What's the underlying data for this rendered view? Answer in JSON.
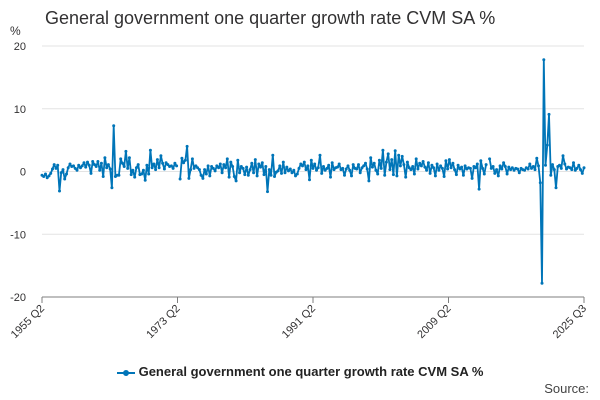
{
  "title": "General government one quarter growth rate CVM SA %",
  "ylabel": "%",
  "source": "Source:",
  "legend": "General government one quarter growth rate CVM SA %",
  "colors": {
    "series": "#0075b8",
    "grid": "#e3e3e3",
    "axis": "#7f7f7f",
    "text": "#323132"
  },
  "chart_data": {
    "type": "line",
    "title": "General government one quarter growth rate CVM SA %",
    "ylabel": "%",
    "xlabel": "",
    "ylim": [
      -20,
      20
    ],
    "yticks": [
      20,
      10,
      0,
      -10,
      -20
    ],
    "x_start": "1955 Q2",
    "x_end": "2025 Q3",
    "xtick_labels": [
      "1955 Q2",
      "1973 Q2",
      "1991 Q2",
      "2009 Q2",
      "2025 Q3"
    ],
    "legend_position": "bottom",
    "grid": true,
    "series": [
      {
        "name": "General government one quarter growth rate CVM SA %",
        "values": [
          -0.6,
          -0.8,
          -0.4,
          -1.0,
          -0.7,
          -0.3,
          0.4,
          1.1,
          0.5,
          1.0,
          -3.1,
          -0.2,
          0.3,
          -1.2,
          -0.4,
          0.6,
          1.2,
          0.8,
          0.9,
          0.5,
          0.2,
          1.0,
          0.6,
          0.9,
          1.4,
          0.7,
          1.5,
          1.0,
          -0.3,
          1.6,
          1.1,
          0.8,
          1.6,
          0.2,
          1.3,
          -0.8,
          2.2,
          0.6,
          1.1,
          0.4,
          -2.6,
          7.3,
          -0.8,
          -0.6,
          -0.6,
          2.0,
          1.3,
          0.8,
          3.2,
          0.5,
          2.2,
          -0.5,
          0.2,
          -0.9,
          0.6,
          1.1,
          -0.5,
          -0.4,
          0.2,
          -1.4,
          1.0,
          -0.4,
          3.4,
          0.6,
          1.2,
          0.3,
          1.9,
          0.6,
          2.5,
          1.3,
          0.4,
          1.4,
          1.1,
          0.8,
          0.9,
          0.5,
          1.3,
          0.9,
          null,
          -1.2,
          2.1,
          1.4,
          1.8,
          4.0,
          -1.1,
          0.3,
          2.0,
          0.5,
          0.9,
          0.6,
          0.3,
          -0.6,
          -1.1,
          0.3,
          -0.4,
          0.9,
          -0.7,
          0.8,
          0.5,
          0.1,
          0.9,
          0.6,
          1.2,
          -0.2,
          1.1,
          0.6,
          2.0,
          -0.9,
          1.5,
          0.8,
          -0.8,
          -1.5,
          1.8,
          -0.2,
          0.8,
          0.5,
          -0.5,
          0.7,
          -0.6,
          0.3,
          1.3,
          -0.2,
          1.9,
          -0.7,
          1.2,
          0.7,
          1.4,
          -0.5,
          0.8,
          -3.2,
          0.3,
          -0.6,
          2.6,
          -0.8,
          -0.1,
          0.1,
          0.9,
          -0.3,
          1.5,
          -0.2,
          0.7,
          0.1,
          0.4,
          -0.2,
          0.2,
          -0.7,
          -0.4,
          0.5,
          1.2,
          0.9,
          1.5,
          0.3,
          0.9,
          -1.3,
          1.8,
          0.5,
          1.2,
          0.2,
          0.6,
          2.6,
          -0.3,
          0.8,
          0.2,
          0.5,
          1.0,
          -0.9,
          1.4,
          0.3,
          0.6,
          0.7,
          1.2,
          0.3,
          0.5,
          -0.6,
          0.4,
          0.9,
          0.2,
          -0.7,
          1.1,
          0.5,
          0.4,
          1.1,
          -0.2,
          0.6,
          0.9,
          1.3,
          0.4,
          -1.5,
          2.2,
          0.7,
          1.3,
          0.2,
          -0.4,
          1.8,
          0.5,
          3.4,
          -0.6,
          1.5,
          2.8,
          0.3,
          1.9,
          -0.5,
          3.3,
          -0.7,
          2.6,
          0.9,
          2.4,
          1.1,
          -0.9,
          1.5,
          0.6,
          0.3,
          0.8,
          -0.4,
          2.0,
          0.4,
          1.3,
          0.9,
          1.6,
          0.7,
          0.2,
          1.4,
          -0.3,
          1.0,
          0.6,
          -0.7,
          1.2,
          0.2,
          0.9,
          0.5,
          -0.8,
          1.7,
          0.4,
          1.9,
          0.6,
          1.3,
          0.3,
          -0.5,
          1.0,
          0.4,
          0.7,
          -0.6,
          0.9,
          0.4,
          0.6,
          0.5,
          -1.1,
          0.8,
          0.6,
          1.2,
          -2.8,
          1.7,
          0.5,
          -0.4,
          1.1,
          null,
          2.0,
          0.5,
          0.8,
          -0.3,
          0.3,
          -0.7,
          0.9,
          0.4,
          1.4,
          0.8,
          -0.4,
          0.7,
          0.3,
          0.6,
          0.2,
          0.5,
          0.4,
          -0.2,
          0.5,
          0.3,
          0.2,
          0.6,
          0.4,
          1.2,
          0.5,
          0.8,
          0.3,
          2.1,
          0.9,
          -1.8,
          -17.8,
          17.8,
          1.0,
          4.2,
          9.1,
          -0.6,
          1.1,
          0.3,
          -2.6,
          0.8,
          1.0,
          0.5,
          2.5,
          1.2,
          0.4,
          0.7,
          0.6,
          0.3,
          1.4,
          0.2,
          0.5,
          1.0,
          0.3,
          -0.3,
          0.6
        ]
      }
    ]
  }
}
